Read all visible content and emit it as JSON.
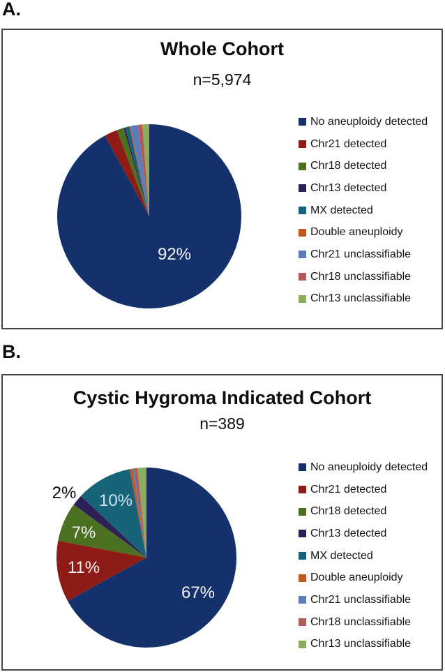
{
  "page": {
    "panel_a_label": "A.",
    "panel_b_label": "B."
  },
  "chart_data": [
    {
      "type": "pie",
      "title": "Whole Cohort",
      "subtitle": "n=5,974",
      "n": 5974,
      "legend_position": "right",
      "slices": [
        {
          "label": "No aneuploidy detected",
          "color": "#14316B",
          "percent": 92.0,
          "data_label": "92%"
        },
        {
          "label": "Chr21 detected",
          "color": "#8E1B15",
          "percent": 2.3,
          "data_label": ""
        },
        {
          "label": "Chr18 detected",
          "color": "#4C7022",
          "percent": 1.2,
          "data_label": ""
        },
        {
          "label": "Chr13 detected",
          "color": "#2E2057",
          "percent": 0.3,
          "data_label": ""
        },
        {
          "label": "MX detected",
          "color": "#176379",
          "percent": 0.7,
          "data_label": ""
        },
        {
          "label": "Double aneuploidy",
          "color": "#C4571E",
          "percent": 0.2,
          "data_label": ""
        },
        {
          "label": "Chr21 unclassifiable",
          "color": "#5C7CBE",
          "percent": 1.3,
          "data_label": ""
        },
        {
          "label": "Chr18 unclassifiable",
          "color": "#B25959",
          "percent": 0.8,
          "data_label": ""
        },
        {
          "label": "Chr13 unclassifiable",
          "color": "#8BAD59",
          "percent": 1.2,
          "data_label": ""
        }
      ]
    },
    {
      "type": "pie",
      "title": "Cystic Hygroma Indicated Cohort",
      "subtitle": "n=389",
      "n": 389,
      "legend_position": "right",
      "slices": [
        {
          "label": "No aneuploidy detected",
          "color": "#14316B",
          "percent": 67.0,
          "data_label": "67%"
        },
        {
          "label": "Chr21 detected",
          "color": "#8E1B15",
          "percent": 11.0,
          "data_label": "11%"
        },
        {
          "label": "Chr18 detected",
          "color": "#4C7022",
          "percent": 7.0,
          "data_label": "7%"
        },
        {
          "label": "Chr13 detected",
          "color": "#2E2057",
          "percent": 2.0,
          "data_label": "2%"
        },
        {
          "label": "MX detected",
          "color": "#176379",
          "percent": 10.0,
          "data_label": "10%"
        },
        {
          "label": "Double aneuploidy",
          "color": "#C4571E",
          "percent": 0.5,
          "data_label": ""
        },
        {
          "label": "Chr21 unclassifiable",
          "color": "#5C7CBE",
          "percent": 0.3,
          "data_label": ""
        },
        {
          "label": "Chr18 unclassifiable",
          "color": "#B25959",
          "percent": 0.6,
          "data_label": ""
        },
        {
          "label": "Chr13 unclassifiable",
          "color": "#8BAD59",
          "percent": 1.6,
          "data_label": ""
        }
      ]
    }
  ]
}
